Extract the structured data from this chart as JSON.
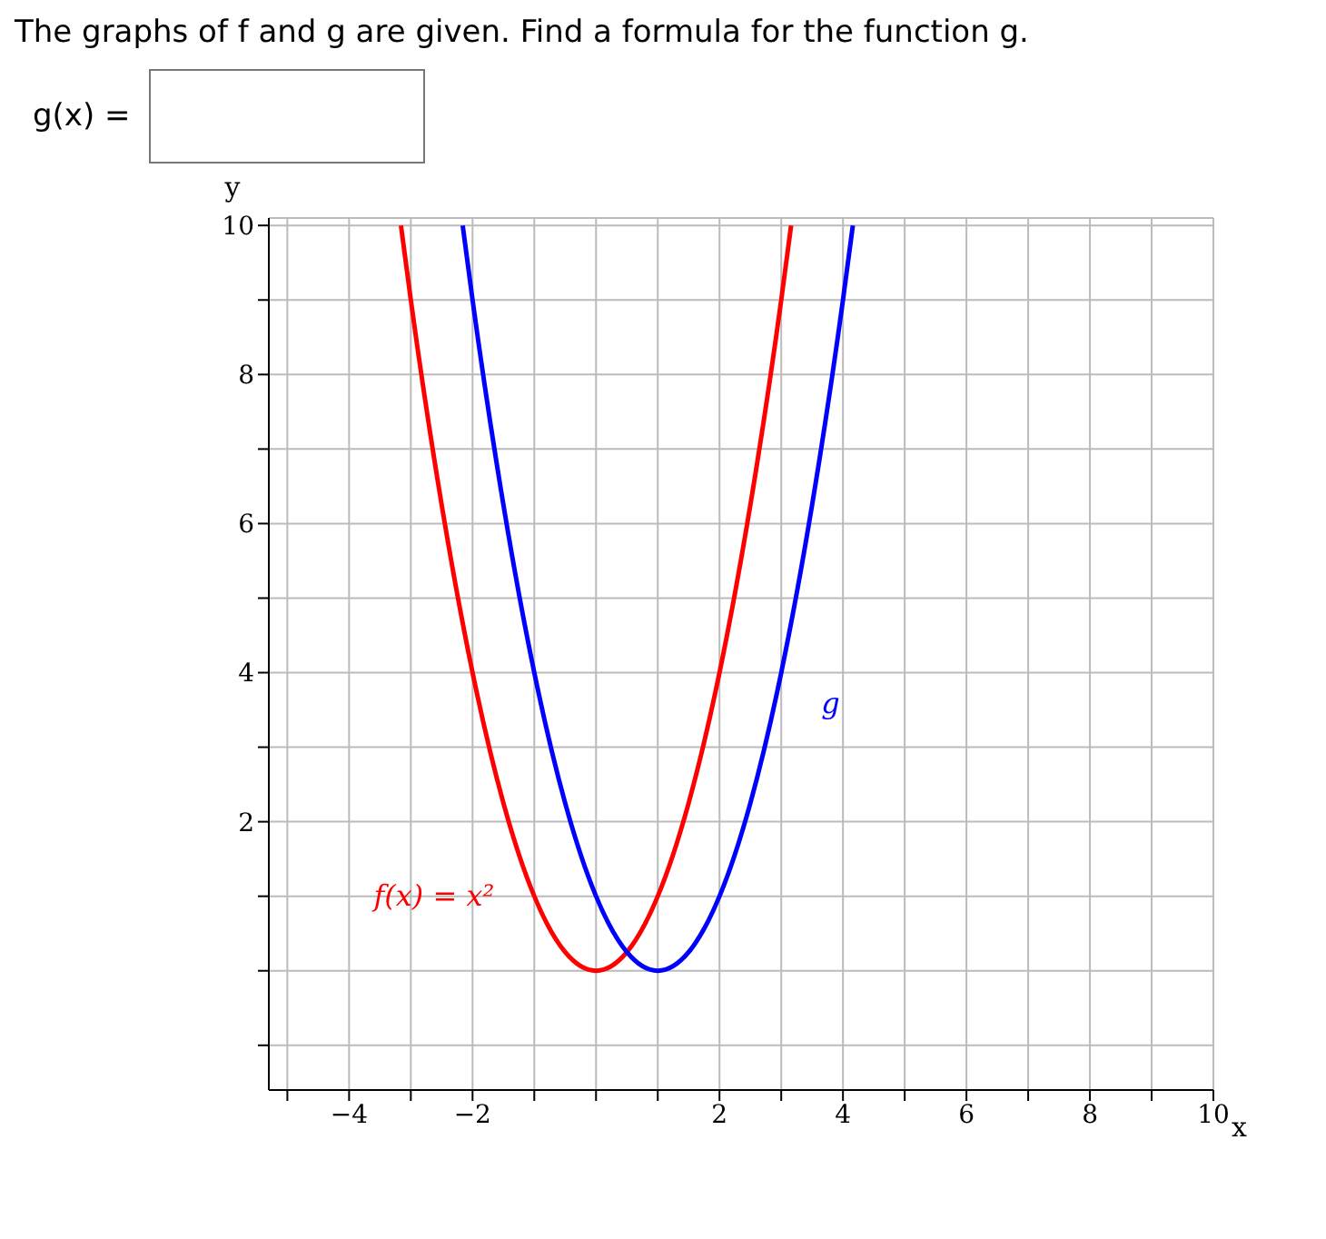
{
  "chart_data": {
    "type": "line",
    "title": "The graphs of f and g are given. Find a formula for the function g.",
    "subtitle": "g(x) =",
    "xlabel": "x",
    "ylabel": "y",
    "series": [
      {
        "name": "f(x) = x²",
        "color": "#ff0000",
        "x": [
          -3.16,
          -3,
          -2.5,
          -2,
          -1.5,
          -1,
          -0.5,
          0,
          0.5,
          1,
          1.5,
          2,
          2.5,
          3,
          3.16
        ],
        "values": [
          10,
          9,
          6.25,
          4,
          2.25,
          1,
          0.25,
          0,
          0.25,
          1,
          2.25,
          4,
          6.25,
          9,
          10
        ]
      },
      {
        "name": "g",
        "color": "#0000ff",
        "x": [
          -2.16,
          -2,
          -1.5,
          -1,
          -0.5,
          0,
          0.5,
          1,
          1.5,
          2,
          2.5,
          3,
          3.5,
          4,
          4.16
        ],
        "values": [
          10,
          9,
          6.25,
          4,
          2.25,
          1,
          0.25,
          0,
          0.25,
          1,
          2.25,
          4,
          6.25,
          9,
          10
        ]
      }
    ],
    "xlim": [
      -5.3,
      10
    ],
    "ylim": [
      -1.6,
      10.1
    ],
    "xticks": [
      {
        "value": -5,
        "label": null
      },
      -4,
      {
        "value": -3,
        "label": null
      },
      -2,
      {
        "value": -1,
        "label": null
      },
      {
        "value": 0,
        "label": null
      },
      {
        "value": 1,
        "label": null
      },
      2,
      {
        "value": 3,
        "label": null
      },
      4,
      {
        "value": 5,
        "label": null
      },
      6,
      {
        "value": 7,
        "label": null
      },
      8,
      {
        "value": 9,
        "label": null
      },
      10
    ],
    "yticks": [
      {
        "value": -1,
        "label": null
      },
      {
        "value": 0,
        "label": null
      },
      {
        "value": 1,
        "label": null
      },
      2,
      {
        "value": 3,
        "label": null
      },
      4,
      {
        "value": 5,
        "label": null
      },
      6,
      {
        "value": 7,
        "label": null
      },
      8,
      {
        "value": 9,
        "label": null
      },
      10
    ],
    "grid": true,
    "marker": "none",
    "line_style": "solid"
  }
}
